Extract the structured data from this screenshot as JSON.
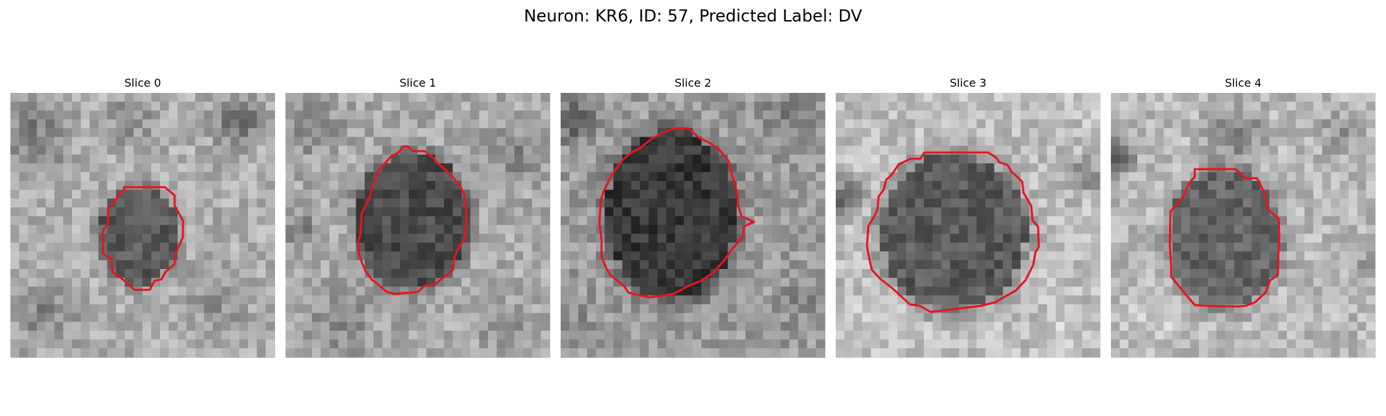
{
  "figure": {
    "title": "Neuron: KR6, ID: 57, Predicted Label: DV"
  },
  "slices": [
    {
      "title": "Slice 0",
      "image_description": "grayscale microscopy patch with smaller dark neuron outlined",
      "contour_color": "#e8141e"
    },
    {
      "title": "Slice 1",
      "image_description": "grayscale microscopy patch with larger neuron outlined",
      "contour_color": "#e8141e"
    },
    {
      "title": "Slice 2",
      "image_description": "grayscale microscopy patch with darkest neuron outlined",
      "contour_color": "#e8141e"
    },
    {
      "title": "Slice 3",
      "image_description": "grayscale microscopy patch with medium-gray neuron outlined",
      "contour_color": "#e8141e"
    },
    {
      "title": "Slice 4",
      "image_description": "grayscale microscopy patch with lighter neuron outlined",
      "contour_color": "#e8141e"
    }
  ],
  "colors": {
    "background": "#ffffff",
    "contour": "#e8141e"
  }
}
